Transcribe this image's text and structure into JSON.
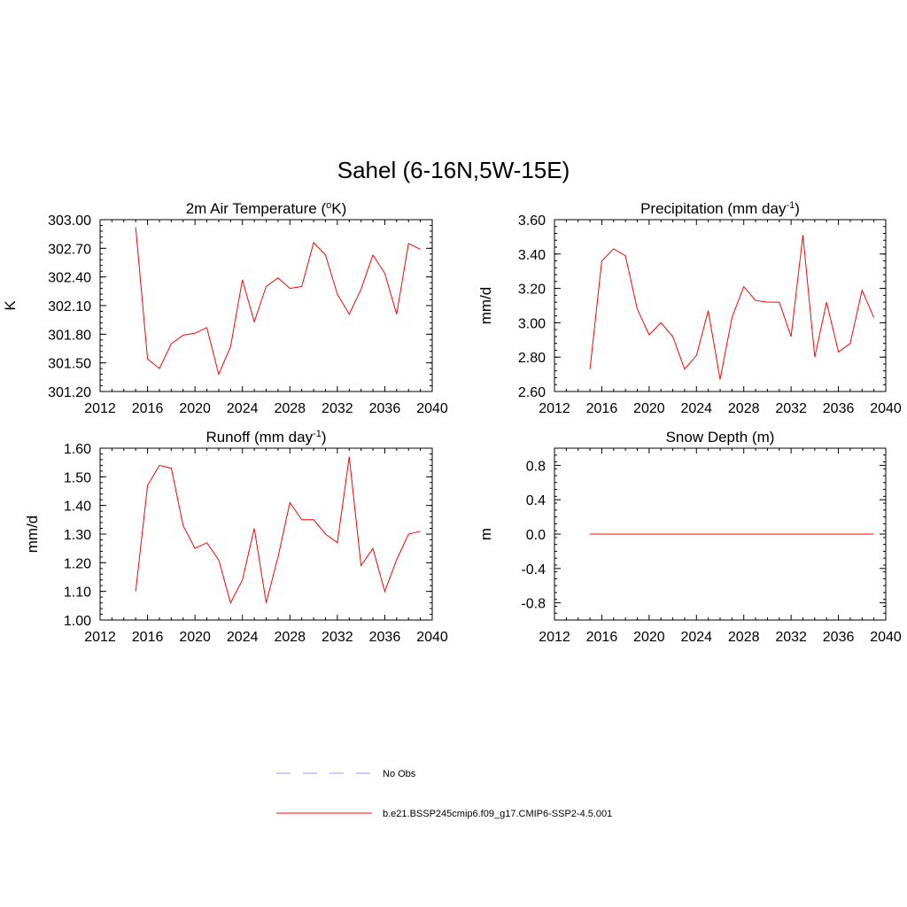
{
  "figure": {
    "title": "Sahel (6-16N,5W-15E)"
  },
  "chart_data": [
    {
      "type": "line",
      "title": "2m Air Temperature (",
      "title_sup": "o",
      "title_after": "K)",
      "ylabel": "K",
      "xlim": [
        2012,
        2040
      ],
      "ylim": [
        301.2,
        303.0
      ],
      "xticks": [
        "2012",
        "2016",
        "2020",
        "2024",
        "2028",
        "2032",
        "2036",
        "2040"
      ],
      "yticks": [
        301.2,
        301.5,
        301.8,
        302.1,
        302.4,
        302.7,
        303.0
      ],
      "ytick_labels": [
        "301.20",
        "301.50",
        "301.80",
        "302.10",
        "302.40",
        "302.70",
        "303.00"
      ],
      "series": [
        {
          "color": "#ff0000",
          "x": [
            2015,
            2016,
            2017,
            2018,
            2019,
            2020,
            2021,
            2022,
            2023,
            2024,
            2025,
            2026,
            2027,
            2028,
            2029,
            2030,
            2031,
            2032,
            2033,
            2034,
            2035,
            2036,
            2037,
            2038,
            2039
          ],
          "values": [
            302.92,
            301.54,
            301.44,
            301.7,
            301.79,
            301.81,
            301.87,
            301.38,
            301.67,
            302.37,
            301.93,
            302.3,
            302.39,
            302.28,
            302.3,
            302.76,
            302.63,
            302.22,
            302.01,
            302.27,
            302.63,
            302.44,
            302.01,
            302.75,
            302.69
          ]
        }
      ]
    },
    {
      "type": "line",
      "title": "Precipitation (mm day",
      "title_sup": "-1",
      "title_after": ")",
      "ylabel": "mm/d",
      "xlim": [
        2012,
        2040
      ],
      "ylim": [
        2.6,
        3.6
      ],
      "xticks": [
        "2012",
        "2016",
        "2020",
        "2024",
        "2028",
        "2032",
        "2036",
        "2040"
      ],
      "yticks": [
        2.6,
        2.8,
        3.0,
        3.2,
        3.4,
        3.6
      ],
      "ytick_labels": [
        "2.60",
        "2.80",
        "3.00",
        "3.20",
        "3.40",
        "3.60"
      ],
      "series": [
        {
          "color": "#ff0000",
          "x": [
            2015,
            2016,
            2017,
            2018,
            2019,
            2020,
            2021,
            2022,
            2023,
            2024,
            2025,
            2026,
            2027,
            2028,
            2029,
            2030,
            2031,
            2032,
            2033,
            2034,
            2035,
            2036,
            2037,
            2038,
            2039
          ],
          "values": [
            2.73,
            3.36,
            3.43,
            3.39,
            3.08,
            2.93,
            3.0,
            2.92,
            2.73,
            2.81,
            3.07,
            2.67,
            3.03,
            3.21,
            3.13,
            3.12,
            3.12,
            2.92,
            3.51,
            2.8,
            3.12,
            2.83,
            2.88,
            3.19,
            3.03
          ]
        }
      ]
    },
    {
      "type": "line",
      "title": "Runoff (mm day",
      "title_sup": "-1",
      "title_after": ")",
      "ylabel": "mm/d",
      "xlim": [
        2012,
        2040
      ],
      "ylim": [
        1.0,
        1.6
      ],
      "xticks": [
        "2012",
        "2016",
        "2020",
        "2024",
        "2028",
        "2032",
        "2036",
        "2040"
      ],
      "yticks": [
        1.0,
        1.1,
        1.2,
        1.3,
        1.4,
        1.5,
        1.6
      ],
      "ytick_labels": [
        "1.00",
        "1.10",
        "1.20",
        "1.30",
        "1.40",
        "1.50",
        "1.60"
      ],
      "series": [
        {
          "color": "#ff0000",
          "x": [
            2015,
            2016,
            2017,
            2018,
            2019,
            2020,
            2021,
            2022,
            2023,
            2024,
            2025,
            2026,
            2027,
            2028,
            2029,
            2030,
            2031,
            2032,
            2033,
            2034,
            2035,
            2036,
            2037,
            2038,
            2039
          ],
          "values": [
            1.1,
            1.47,
            1.54,
            1.53,
            1.33,
            1.25,
            1.27,
            1.21,
            1.06,
            1.14,
            1.32,
            1.06,
            1.22,
            1.41,
            1.35,
            1.35,
            1.3,
            1.27,
            1.57,
            1.19,
            1.25,
            1.1,
            1.21,
            1.3,
            1.31
          ]
        }
      ]
    },
    {
      "type": "line",
      "title": "Snow Depth (m)",
      "title_sup": "",
      "title_after": "",
      "ylabel": "m",
      "xlim": [
        2012,
        2040
      ],
      "ylim": [
        -1.0,
        1.0
      ],
      "xticks": [
        "2012",
        "2016",
        "2020",
        "2024",
        "2028",
        "2032",
        "2036",
        "2040"
      ],
      "yticks": [
        -0.8,
        -0.4,
        0.0,
        0.4,
        0.8
      ],
      "ytick_labels": [
        "-0.8",
        "-0.4",
        "0.0",
        "0.4",
        "0.8"
      ],
      "series": [
        {
          "color": "#ff0000",
          "x": [
            2015,
            2039
          ],
          "values": [
            0.0,
            0.0
          ]
        }
      ]
    }
  ],
  "legend": [
    {
      "label": "No Obs",
      "color": "#9999ff",
      "style": "dashed"
    },
    {
      "label": "b.e21.BSSP245cmip6.f09_g17.CMIP6-SSP2-4.5.001",
      "color": "#ff0000",
      "style": "solid"
    }
  ]
}
